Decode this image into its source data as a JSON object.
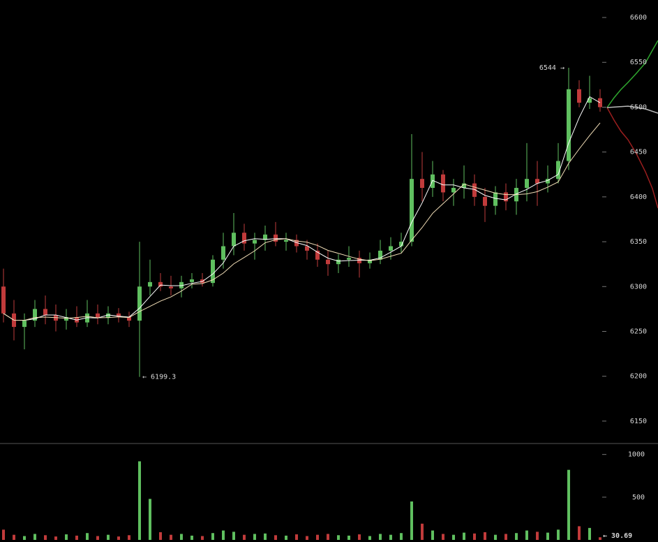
{
  "chart_data": {
    "type": "candlestick",
    "up_color": "#5fbf5f",
    "down_color": "#c13b3b",
    "ma_colors": [
      "#ffffff",
      "#f3dfb8"
    ],
    "ohlc": [
      [
        6300,
        6320,
        6260,
        6270
      ],
      [
        6270,
        6285,
        6240,
        6255
      ],
      [
        6255,
        6270,
        6230,
        6262
      ],
      [
        6262,
        6285,
        6255,
        6275
      ],
      [
        6275,
        6290,
        6258,
        6268
      ],
      [
        6268,
        6280,
        6250,
        6262
      ],
      [
        6262,
        6275,
        6252,
        6266
      ],
      [
        6266,
        6278,
        6255,
        6260
      ],
      [
        6260,
        6285,
        6255,
        6270
      ],
      [
        6270,
        6280,
        6258,
        6265
      ],
      [
        6265,
        6278,
        6258,
        6270
      ],
      [
        6270,
        6276,
        6260,
        6266
      ],
      [
        6266,
        6272,
        6255,
        6262
      ],
      [
        6262,
        6350,
        6199.3,
        6300
      ],
      [
        6300,
        6330,
        6290,
        6305
      ],
      [
        6305,
        6315,
        6295,
        6300
      ],
      [
        6300,
        6312,
        6290,
        6298
      ],
      [
        6298,
        6312,
        6288,
        6305
      ],
      [
        6305,
        6315,
        6298,
        6308
      ],
      [
        6308,
        6315,
        6300,
        6304
      ],
      [
        6304,
        6335,
        6300,
        6330
      ],
      [
        6330,
        6360,
        6320,
        6345
      ],
      [
        6345,
        6382,
        6335,
        6360
      ],
      [
        6360,
        6370,
        6340,
        6348
      ],
      [
        6348,
        6360,
        6330,
        6352
      ],
      [
        6352,
        6368,
        6340,
        6358
      ],
      [
        6358,
        6372,
        6345,
        6350
      ],
      [
        6350,
        6360,
        6340,
        6352
      ],
      [
        6352,
        6358,
        6338,
        6345
      ],
      [
        6345,
        6352,
        6330,
        6340
      ],
      [
        6340,
        6348,
        6322,
        6330
      ],
      [
        6330,
        6340,
        6312,
        6325
      ],
      [
        6325,
        6336,
        6315,
        6330
      ],
      [
        6330,
        6345,
        6322,
        6332
      ],
      [
        6332,
        6340,
        6310,
        6326
      ],
      [
        6326,
        6338,
        6320,
        6330
      ],
      [
        6330,
        6352,
        6325,
        6340
      ],
      [
        6340,
        6355,
        6330,
        6345
      ],
      [
        6345,
        6360,
        6338,
        6350
      ],
      [
        6350,
        6470,
        6345,
        6420
      ],
      [
        6420,
        6450,
        6395,
        6410
      ],
      [
        6410,
        6440,
        6400,
        6425
      ],
      [
        6425,
        6430,
        6395,
        6405
      ],
      [
        6405,
        6420,
        6390,
        6410
      ],
      [
        6410,
        6435,
        6398,
        6415
      ],
      [
        6415,
        6425,
        6390,
        6400
      ],
      [
        6400,
        6410,
        6372,
        6390
      ],
      [
        6390,
        6412,
        6380,
        6405
      ],
      [
        6405,
        6415,
        6385,
        6395
      ],
      [
        6395,
        6420,
        6380,
        6410
      ],
      [
        6410,
        6460,
        6395,
        6420
      ],
      [
        6420,
        6440,
        6390,
        6415
      ],
      [
        6415,
        6435,
        6405,
        6420
      ],
      [
        6420,
        6460,
        6415,
        6440
      ],
      [
        6440,
        6544,
        6430,
        6520
      ],
      [
        6520,
        6530,
        6500,
        6505
      ],
      [
        6505,
        6535,
        6498,
        6510
      ],
      [
        6510,
        6520,
        6495,
        6500
      ]
    ],
    "volume": [
      120,
      60,
      45,
      70,
      55,
      40,
      65,
      50,
      80,
      45,
      60,
      40,
      55,
      920,
      480,
      90,
      60,
      70,
      50,
      45,
      80,
      110,
      95,
      60,
      70,
      75,
      55,
      50,
      65,
      45,
      60,
      70,
      55,
      50,
      65,
      45,
      70,
      60,
      80,
      450,
      190,
      110,
      70,
      60,
      85,
      75,
      90,
      60,
      70,
      80,
      110,
      95,
      85,
      120,
      820,
      160,
      140,
      30.69
    ],
    "ylim": [
      6125,
      6619.5
    ],
    "yticks": [
      6150,
      6200,
      6250,
      6300,
      6350,
      6400,
      6450,
      6500,
      6550,
      6600
    ],
    "volume_ylim": [
      0,
      1120
    ],
    "volume_yticks": [
      500,
      1000
    ],
    "annotations": [
      {
        "value": 6544,
        "label": "6544 →"
      },
      {
        "value": 6199.3,
        "label": "← 6199.3"
      },
      {
        "value": 30.69,
        "label": "← 30.69"
      }
    ]
  }
}
